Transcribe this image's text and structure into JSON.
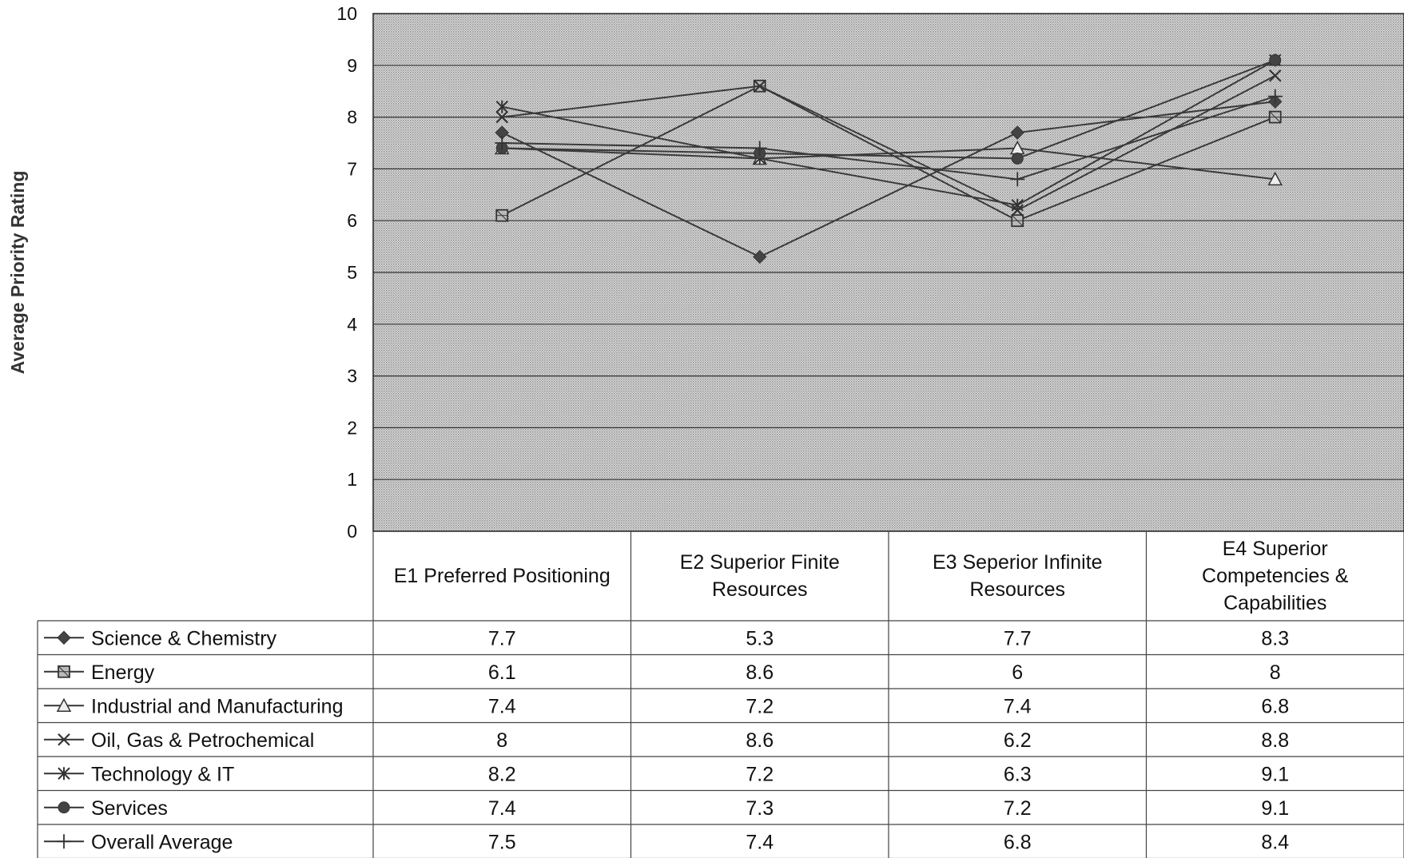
{
  "chart_data": {
    "type": "line",
    "title": "",
    "xlabel": "",
    "ylabel": "Average Priority Rating",
    "ylim": [
      0,
      10
    ],
    "yticks": [
      "0",
      "1",
      "2",
      "3",
      "4",
      "5",
      "6",
      "7",
      "8",
      "9",
      "10"
    ],
    "grid": true,
    "legend": "data table below chart",
    "categories": [
      [
        "E1 Preferred Positioning"
      ],
      [
        "E2 Superior Finite",
        "Resources"
      ],
      [
        "E3 Seperior Infinite",
        "Resources"
      ],
      [
        "E4 Superior",
        "Competencies &",
        "Capabilities"
      ]
    ],
    "series": [
      {
        "name": "Science & Chemistry",
        "values": [
          7.7,
          5.3,
          7.7,
          8.3
        ],
        "labels": [
          "7.7",
          "5.3",
          "7.7",
          "8.3"
        ],
        "marker": "diamond"
      },
      {
        "name": "Energy",
        "values": [
          6.1,
          8.6,
          6,
          8
        ],
        "labels": [
          "6.1",
          "8.6",
          "6",
          "8"
        ],
        "marker": "square"
      },
      {
        "name": "Industrial and Manufacturing",
        "values": [
          7.4,
          7.2,
          7.4,
          6.8
        ],
        "labels": [
          "7.4",
          "7.2",
          "7.4",
          "6.8"
        ],
        "marker": "triangle"
      },
      {
        "name": "Oil, Gas & Petrochemical",
        "values": [
          8,
          8.6,
          6.2,
          8.8
        ],
        "labels": [
          "8",
          "8.6",
          "6.2",
          "8.8"
        ],
        "marker": "x"
      },
      {
        "name": "Technology & IT",
        "values": [
          8.2,
          7.2,
          6.3,
          9.1
        ],
        "labels": [
          "8.2",
          "7.2",
          "6.3",
          "9.1"
        ],
        "marker": "star"
      },
      {
        "name": "Services",
        "values": [
          7.4,
          7.3,
          7.2,
          9.1
        ],
        "labels": [
          "7.4",
          "7.3",
          "7.2",
          "9.1"
        ],
        "marker": "circle"
      },
      {
        "name": "Overall Average",
        "values": [
          7.5,
          7.4,
          6.8,
          8.4
        ],
        "labels": [
          "7.5",
          "7.4",
          "6.8",
          "8.4"
        ],
        "marker": "plus"
      }
    ]
  }
}
